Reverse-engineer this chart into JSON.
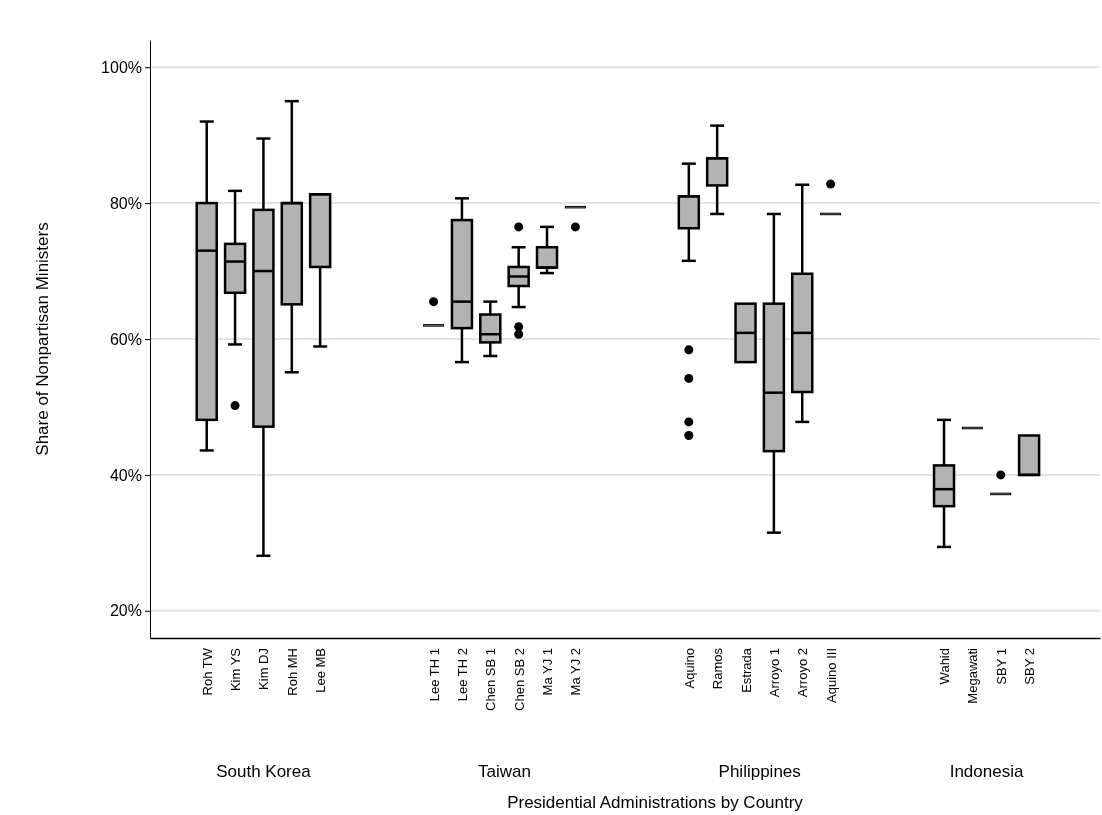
{
  "chart_data": {
    "type": "box",
    "xlabel": "Presidential Administrations by Country",
    "ylabel": "Share of Nonpartisan Ministers",
    "categories": [
      "Roh TW",
      "Kim YS",
      "Kim DJ",
      "Roh MH",
      "Lee MB",
      null,
      null,
      null,
      "Lee TH 1",
      "Lee TH 2",
      "Chen SB 1",
      "Chen SB 2",
      "Ma YJ 1",
      "Ma YJ 2",
      null,
      null,
      null,
      "Aquino",
      "Ramos",
      "Estrada",
      "Arroyo 1",
      "Arroyo 2",
      "Aquino III",
      null,
      null,
      null,
      "Wahid",
      "Megawati",
      "SBY 1",
      "SBY 2"
    ],
    "annotations": [
      "South Korea",
      "Taiwan",
      "Philippines",
      "Indonesia"
    ],
    "color": "#b3b3b3",
    "ylim": [
      16,
      104
    ],
    "yticks": [
      {
        "value": 20,
        "label": "20%"
      },
      {
        "value": 40,
        "label": "40%"
      },
      {
        "value": 60,
        "label": "60%"
      },
      {
        "value": 80,
        "label": "80%"
      },
      {
        "value": 100,
        "label": "100%"
      }
    ],
    "grid": "y",
    "boxes": [
      {
        "low": 43.6,
        "q1": 48.1,
        "median": 73.0,
        "q3": 80.0,
        "high": 92.0
      },
      {
        "low": 59.2,
        "q1": 66.8,
        "median": 71.4,
        "q3": 74.0,
        "high": 81.8,
        "outliers": [
          50.2
        ]
      },
      {
        "low": 28.1,
        "q1": 47.1,
        "median": 70.0,
        "q3": 79.0,
        "high": 89.5
      },
      {
        "low": 55.1,
        "q1": 65.1,
        "median": 80.0,
        "q3": 80.0,
        "high": 95.0
      },
      {
        "low": 58.9,
        "q1": 70.6,
        "median": 81.3,
        "q3": 81.3,
        "high": 81.3
      },
      null,
      null,
      null,
      {
        "low": 62.0,
        "q1": 62.0,
        "median": 62.0,
        "q3": 62.0,
        "high": 62.0,
        "outliers": [
          65.5
        ]
      },
      {
        "low": 56.6,
        "q1": 61.6,
        "median": 65.5,
        "q3": 77.5,
        "high": 80.7
      },
      {
        "low": 57.5,
        "q1": 59.5,
        "median": 60.7,
        "q3": 63.6,
        "high": 65.5
      },
      {
        "low": 64.7,
        "q1": 67.8,
        "median": 69.2,
        "q3": 70.6,
        "high": 73.5,
        "outliers": [
          76.5,
          61.8,
          60.7
        ]
      },
      {
        "low": 69.7,
        "q1": 70.5,
        "median": 70.5,
        "q3": 73.5,
        "high": 76.5
      },
      {
        "low": 79.4,
        "q1": 79.4,
        "median": 79.4,
        "q3": 79.4,
        "high": 79.4,
        "outliers": [
          76.5
        ]
      },
      null,
      null,
      null,
      {
        "low": 71.5,
        "q1": 76.3,
        "median": 81.0,
        "q3": 81.0,
        "high": 85.8,
        "outliers": [
          58.4,
          54.2,
          47.8,
          45.8
        ]
      },
      {
        "low": 78.4,
        "q1": 82.6,
        "median": 86.6,
        "q3": 86.6,
        "high": 91.4
      },
      {
        "low": 56.6,
        "q1": 56.6,
        "median": 60.9,
        "q3": 65.2,
        "high": 65.2
      },
      {
        "low": 31.5,
        "q1": 43.5,
        "median": 52.1,
        "q3": 65.2,
        "high": 78.4
      },
      {
        "low": 47.8,
        "q1": 52.2,
        "median": 60.9,
        "q3": 69.6,
        "high": 82.7
      },
      {
        "low": 78.4,
        "q1": 78.4,
        "median": 78.4,
        "q3": 78.4,
        "high": 78.4,
        "outliers": [
          82.8
        ]
      },
      null,
      null,
      null,
      {
        "low": 29.4,
        "q1": 35.4,
        "median": 37.9,
        "q3": 41.4,
        "high": 48.1
      },
      {
        "low": 46.9,
        "q1": 46.9,
        "median": 46.9,
        "q3": 46.9,
        "high": 46.9
      },
      {
        "low": 37.2,
        "q1": 37.2,
        "median": 37.2,
        "q3": 37.2,
        "high": 37.2,
        "outliers": [
          40.0
        ]
      },
      {
        "low": 40.0,
        "q1": 40.0,
        "median": 40.0,
        "q3": 45.8,
        "high": 45.8
      }
    ]
  }
}
